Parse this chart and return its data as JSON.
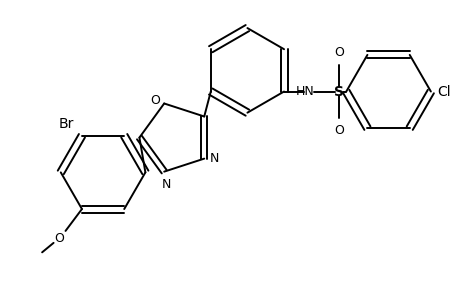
{
  "background_color": "#ffffff",
  "line_color": "#000000",
  "line_width": 1.4,
  "font_size": 9,
  "fig_width": 4.6,
  "fig_height": 3.0,
  "dpi": 100,
  "xlim": [
    0.0,
    9.2
  ],
  "ylim": [
    0.0,
    6.0
  ]
}
